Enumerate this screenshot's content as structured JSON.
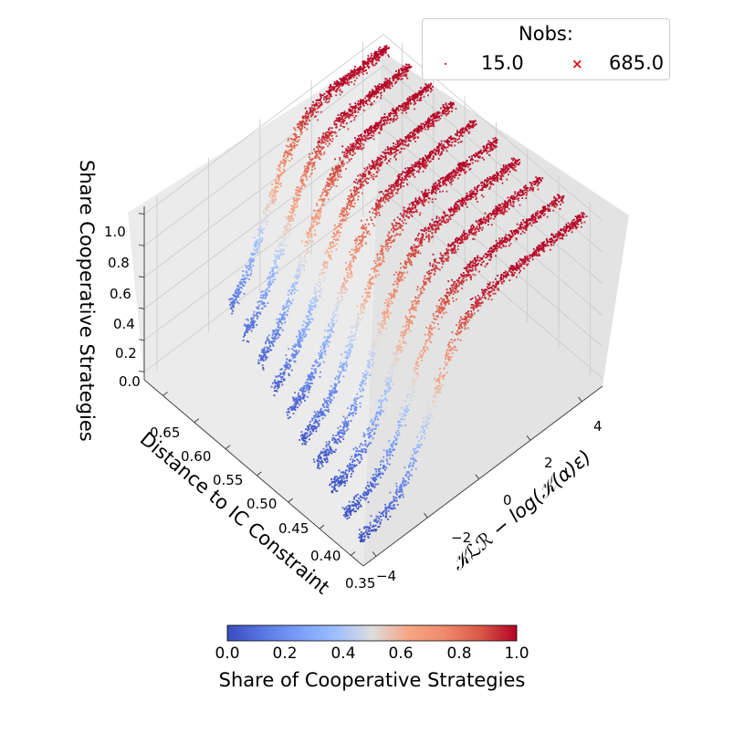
{
  "chart_data": {
    "type": "scatter3d",
    "view": "3D scatter, each parameter value forms a strip along the KLR axis",
    "axes": {
      "x": {
        "label": "Distance to IC Constraint",
        "ticks": [
          "0.35",
          "0.40",
          "0.45",
          "0.50",
          "0.55",
          "0.60",
          "0.65"
        ],
        "range": [
          0.33,
          0.68
        ]
      },
      "y": {
        "label": "$\\mathcal{KLR} - log(\\mathcal{K}(\\alpha)\\varepsilon)$",
        "label_display": "𝒦ℒℛ − log(𝒦(α)ε)",
        "ticks": [
          "−4",
          "−2",
          "0",
          "2",
          "4"
        ],
        "range": [
          -4.5,
          4.8
        ]
      },
      "z": {
        "label": "Share Cooperative Strategies",
        "ticks": [
          "0.0",
          "0.2",
          "0.4",
          "0.6",
          "0.8",
          "1.0"
        ],
        "range": [
          -0.05,
          1.05
        ]
      }
    },
    "series": {
      "strip_x_values": [
        0.35,
        0.385,
        0.42,
        0.455,
        0.49,
        0.525,
        0.56,
        0.595,
        0.63,
        0.665
      ],
      "klr_start_by_strip": [
        -4.2,
        -3.9,
        -3.6,
        -3.3,
        -3.0,
        -2.7,
        -2.4,
        -2.1,
        -1.8,
        -1.5
      ],
      "klr_end": 4.6,
      "transition_center_klr": -0.8,
      "share_range": [
        0.0,
        1.0
      ],
      "description": "Share of cooperative strategies rises from 0 (low KLR) to 1 (high KLR) along every strip"
    },
    "legend": {
      "title": "Nobs:",
      "entries": [
        {
          "label": "15.0",
          "marker": "dot"
        },
        {
          "label": "685.0",
          "marker": "x"
        }
      ]
    },
    "colorbar": {
      "label": "Share of Cooperative Strategies",
      "ticks": [
        "0.0",
        "0.2",
        "0.4",
        "0.6",
        "0.8",
        "1.0"
      ],
      "colormap": "coolwarm",
      "range": [
        0,
        1
      ]
    },
    "colors": {
      "low": "#3b4cc0",
      "mid": "#dddddd",
      "high": "#b40426",
      "pane_left": "#ebebeb",
      "pane_right": "#e3e3e3",
      "pane_floor": "#f0f0f0",
      "grid": "#c8c8c8"
    }
  }
}
